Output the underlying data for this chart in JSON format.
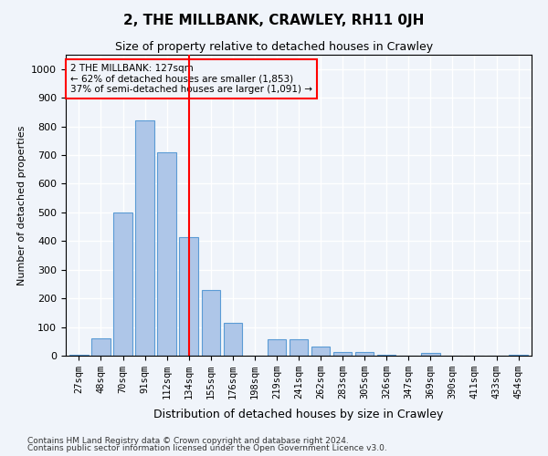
{
  "title": "2, THE MILLBANK, CRAWLEY, RH11 0JH",
  "subtitle": "Size of property relative to detached houses in Crawley",
  "xlabel": "Distribution of detached houses by size in Crawley",
  "ylabel": "Number of detached properties",
  "footnote1": "Contains HM Land Registry data © Crown copyright and database right 2024.",
  "footnote2": "Contains public sector information licensed under the Open Government Licence v3.0.",
  "categories": [
    "27sqm",
    "48sqm",
    "70sqm",
    "91sqm",
    "112sqm",
    "134sqm",
    "155sqm",
    "176sqm",
    "198sqm",
    "219sqm",
    "241sqm",
    "262sqm",
    "283sqm",
    "305sqm",
    "326sqm",
    "347sqm",
    "369sqm",
    "390sqm",
    "411sqm",
    "433sqm",
    "454sqm"
  ],
  "values": [
    3,
    60,
    500,
    820,
    710,
    415,
    230,
    115,
    0,
    57,
    57,
    32,
    14,
    12,
    4,
    0,
    10,
    0,
    0,
    0,
    2
  ],
  "bar_color": "#aec6e8",
  "bar_edge_color": "#5b9bd5",
  "vline_x": 5.5,
  "vline_color": "red",
  "annotation_text": "2 THE MILLBANK: 127sqm\n← 62% of detached houses are smaller (1,853)\n37% of semi-detached houses are larger (1,091) →",
  "annotation_box_color": "red",
  "ylim": [
    0,
    1050
  ],
  "yticks": [
    0,
    100,
    200,
    300,
    400,
    500,
    600,
    700,
    800,
    900,
    1000
  ],
  "bg_color": "#f0f4fa",
  "grid_color": "#ffffff"
}
